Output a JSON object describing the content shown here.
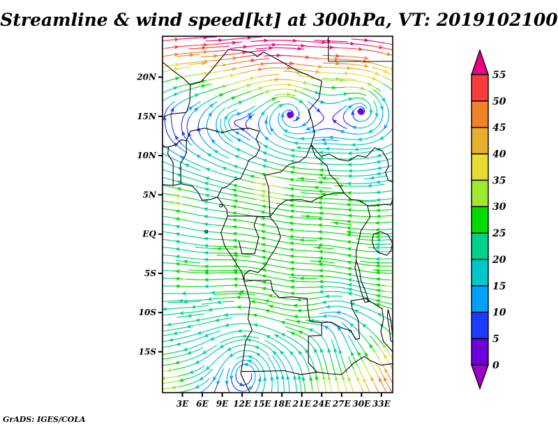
{
  "title": "Streamline & wind speed[kt] at 300hPa, VT: 2019102100",
  "credit": "GrADS: IGES/COLA",
  "chart_data": {
    "type": "streamline-map",
    "variable": "wind speed [kt]",
    "pressure_level": "300hPa",
    "valid_time": "2019102100",
    "geo": {
      "lon_min": 0,
      "lon_max": 34.7,
      "lat_min": -20.2,
      "lat_max": 25.2
    },
    "x_axis": {
      "ticks": [
        {
          "lon": 3,
          "label": "3E"
        },
        {
          "lon": 6,
          "label": "6E"
        },
        {
          "lon": 9,
          "label": "9E"
        },
        {
          "lon": 12,
          "label": "12E"
        },
        {
          "lon": 15,
          "label": "15E"
        },
        {
          "lon": 18,
          "label": "18E"
        },
        {
          "lon": 21,
          "label": "21E"
        },
        {
          "lon": 24,
          "label": "24E"
        },
        {
          "lon": 27,
          "label": "27E"
        },
        {
          "lon": 30,
          "label": "30E"
        },
        {
          "lon": 33,
          "label": "33E"
        }
      ]
    },
    "y_axis": {
      "ticks": [
        {
          "lat": 20,
          "label": "20N"
        },
        {
          "lat": 15,
          "label": "15N"
        },
        {
          "lat": 10,
          "label": "10N"
        },
        {
          "lat": 5,
          "label": "5N"
        },
        {
          "lat": 0,
          "label": "EQ"
        },
        {
          "lat": -5,
          "label": "5S"
        },
        {
          "lat": -10,
          "label": "10S"
        },
        {
          "lat": -15,
          "label": "15S"
        }
      ]
    },
    "colorbar": {
      "unit": "kt",
      "levels": [
        0,
        5,
        10,
        15,
        20,
        25,
        30,
        35,
        40,
        45,
        50,
        55
      ],
      "colors": [
        "#A000C8",
        "#6E00DC",
        "#1E3CFF",
        "#00A0FF",
        "#00C8C8",
        "#00D28C",
        "#00DC00",
        "#A0E632",
        "#E6DC32",
        "#E6AF2D",
        "#F08228",
        "#FA3C3C",
        "#F00082"
      ]
    },
    "flow": {
      "jets": [
        {
          "type": "westerly",
          "lat0": 27.5,
          "hw": 9.0,
          "peak": 57,
          "peak_bump": {
            "lon0": 17,
            "hw": 6,
            "amp": 5
          }
        },
        {
          "type": "easterly",
          "lat0": -0.5,
          "hw": 12.5,
          "power": 4,
          "amp": -17
        }
      ],
      "waves": [
        {
          "amp": 2.5,
          "k": 0.45,
          "phase": 2.0,
          "lat0": 21,
          "hw": 6
        },
        {
          "amp": 1.8,
          "k": 0.5,
          "phase": 0.0,
          "lat0": -3,
          "hw": 8
        }
      ],
      "bumps": [
        {
          "lon": 2,
          "lat": 4.5,
          "rlon": 2.2,
          "rlat": 2.2,
          "du": -9,
          "dv": 0
        },
        {
          "lon": 15.5,
          "lat": 6,
          "rlon": 2.4,
          "rlat": 2.0,
          "du": -9,
          "dv": 0
        },
        {
          "lon": 3,
          "lat": -5.5,
          "rlon": 2.0,
          "rlat": 1.6,
          "du": -7,
          "dv": 0
        },
        {
          "lon": 31,
          "lat": 7,
          "rlon": 3.0,
          "rlat": 2.2,
          "du": 8,
          "dv": 0
        },
        {
          "lon": 1,
          "lat": 15.2,
          "rlon": 2.0,
          "rlat": 1.5,
          "du": -6,
          "dv": 0
        },
        {
          "lon": 34.5,
          "lat": -7,
          "rlon": 2.5,
          "rlat": 2.5,
          "du": -8,
          "dv": 0
        },
        {
          "lon": 24.5,
          "lat": -21,
          "rlon": 5.0,
          "rlat": 4.0,
          "du": 0,
          "dv": 24
        },
        {
          "lon": 35.5,
          "lat": -20.5,
          "rlon": 8.0,
          "rlat": 8.0,
          "du": -24,
          "dv": 41
        },
        {
          "lon": 0,
          "lat": -20,
          "rlon": 6.5,
          "rlat": 6.5,
          "du": -34,
          "dv": 0
        }
      ],
      "vortices": [
        {
          "lon": 10.4,
          "lat": 14.4,
          "r0": 1.2,
          "speed": 9,
          "dir": -1,
          "inflow": 0
        },
        {
          "lon": 19.0,
          "lat": 15.7,
          "r0": 2.2,
          "speed": 13,
          "dir": -1,
          "inflow": 0.28
        },
        {
          "lon": 30.2,
          "lat": 16.1,
          "r0": 1.8,
          "speed": 13,
          "dir": -1,
          "inflow": 0.22
        },
        {
          "lon": 12.6,
          "lat": -17.5,
          "r0": 2.8,
          "speed": 14,
          "dir": 1,
          "inflow": 0.1
        }
      ],
      "saddles": [
        {
          "lon": 23.8,
          "lat": -12.2,
          "strength": 5,
          "taper": 4
        }
      ]
    },
    "map_borders": [
      [
        [
          0,
          6.3
        ],
        [
          1.6,
          6.2
        ],
        [
          2.8,
          6.4
        ],
        [
          4.5,
          6.1
        ],
        [
          5.3,
          5.4
        ],
        [
          6.0,
          4.3
        ],
        [
          7.2,
          4.4
        ],
        [
          8.3,
          4.7
        ],
        [
          8.9,
          4.0
        ],
        [
          9.7,
          3.1
        ],
        [
          9.8,
          2.3
        ],
        [
          9.3,
          1.2
        ],
        [
          8.8,
          0.2
        ],
        [
          9.4,
          -1.6
        ],
        [
          10.5,
          -2.9
        ],
        [
          11.2,
          -3.9
        ],
        [
          11.9,
          -4.8
        ],
        [
          12.3,
          -6.0
        ],
        [
          12.8,
          -7.3
        ],
        [
          13.2,
          -8.7
        ],
        [
          12.9,
          -10.8
        ],
        [
          13.5,
          -12.2
        ],
        [
          12.5,
          -13.7
        ],
        [
          12.2,
          -15.6
        ],
        [
          11.8,
          -17.8
        ],
        [
          12.4,
          -18.9
        ],
        [
          13.2,
          -20.2
        ]
      ],
      [
        [
          0,
          21.9
        ],
        [
          1.6,
          20.8
        ],
        [
          3.2,
          19.8
        ],
        [
          4.2,
          19.0
        ],
        [
          4.1,
          16.8
        ],
        [
          3.6,
          15.5
        ],
        [
          1.3,
          15.3
        ],
        [
          0,
          14.9
        ]
      ],
      [
        [
          4.2,
          19.0
        ],
        [
          5.8,
          19.4
        ],
        [
          7.4,
          20.9
        ],
        [
          9.9,
          23.5
        ],
        [
          11.6,
          23.4
        ],
        [
          13.5,
          23.1
        ],
        [
          14.3,
          22.6
        ],
        [
          15.2,
          23.2
        ],
        [
          16.8,
          22.5
        ],
        [
          20.1,
          20.9
        ],
        [
          24.0,
          19.5
        ]
      ],
      [
        [
          25.0,
          25.2
        ],
        [
          25.0,
          22.0
        ],
        [
          34.7,
          22.0
        ]
      ],
      [
        [
          24.0,
          19.5
        ],
        [
          23.6,
          17.3
        ],
        [
          22.0,
          15.7
        ],
        [
          22.6,
          14.2
        ],
        [
          22.9,
          12.7
        ],
        [
          22.4,
          11.4
        ],
        [
          23.0,
          10.0
        ],
        [
          24.8,
          8.7
        ],
        [
          25.2,
          7.6
        ],
        [
          26.3,
          6.7
        ],
        [
          27.4,
          5.2
        ]
      ],
      [
        [
          3.6,
          11.9
        ],
        [
          4.2,
          13.1
        ],
        [
          6.4,
          13.5
        ],
        [
          9.0,
          12.9
        ],
        [
          10.6,
          13.3
        ],
        [
          13.0,
          13.5
        ],
        [
          14.6,
          13.1
        ]
      ],
      [
        [
          14.6,
          13.1
        ],
        [
          14.1,
          12.1
        ],
        [
          14.7,
          11.0
        ],
        [
          14.1,
          10.0
        ],
        [
          13.0,
          9.4
        ],
        [
          12.7,
          8.7
        ],
        [
          11.8,
          7.1
        ],
        [
          10.8,
          6.9
        ],
        [
          9.8,
          6.1
        ],
        [
          8.9,
          5.8
        ],
        [
          8.3,
          4.7
        ]
      ],
      [
        [
          2.8,
          6.4
        ],
        [
          2.7,
          9.0
        ],
        [
          3.3,
          9.8
        ],
        [
          3.6,
          10.4
        ],
        [
          3.6,
          11.9
        ]
      ],
      [
        [
          1.6,
          6.2
        ],
        [
          1.6,
          9.1
        ],
        [
          0.8,
          10.2
        ],
        [
          0.9,
          11.1
        ],
        [
          2.0,
          11.4
        ],
        [
          2.8,
          12.0
        ],
        [
          3.6,
          11.9
        ]
      ],
      [
        [
          0,
          11.1
        ],
        [
          0.9,
          11.1
        ]
      ],
      [
        [
          15.4,
          7.5
        ],
        [
          16.6,
          7.7
        ],
        [
          17.8,
          7.9
        ],
        [
          19.1,
          8.9
        ],
        [
          20.6,
          9.2
        ],
        [
          21.7,
          9.9
        ],
        [
          22.4,
          11.4
        ]
      ],
      [
        [
          16.2,
          2.2
        ],
        [
          16.1,
          4.2
        ],
        [
          16.0,
          5.9
        ],
        [
          15.4,
          7.5
        ]
      ],
      [
        [
          9.8,
          2.3
        ],
        [
          11.3,
          2.3
        ],
        [
          13.2,
          2.3
        ],
        [
          16.2,
          2.2
        ]
      ],
      [
        [
          11.5,
          -0.9
        ],
        [
          12.0,
          -2.5
        ],
        [
          13.9,
          -2.5
        ],
        [
          14.5,
          -0.4
        ],
        [
          13.8,
          1.1
        ],
        [
          14.3,
          2.3
        ]
      ],
      [
        [
          16.2,
          2.2
        ],
        [
          17.3,
          1.0
        ],
        [
          17.8,
          -0.4
        ],
        [
          17.0,
          -1.9
        ],
        [
          16.2,
          -2.9
        ],
        [
          15.5,
          -4.0
        ],
        [
          14.4,
          -4.9
        ],
        [
          13.1,
          -4.6
        ],
        [
          12.3,
          -5.2
        ],
        [
          12.3,
          -6.0
        ]
      ],
      [
        [
          16.2,
          2.2
        ],
        [
          17.5,
          3.6
        ],
        [
          18.6,
          4.3
        ],
        [
          20.8,
          4.4
        ],
        [
          22.4,
          4.1
        ],
        [
          23.5,
          4.6
        ],
        [
          24.7,
          5.0
        ],
        [
          25.8,
          5.2
        ],
        [
          27.4,
          5.2
        ]
      ],
      [
        [
          27.4,
          5.2
        ],
        [
          28.4,
          4.4
        ],
        [
          29.7,
          4.3
        ],
        [
          30.9,
          3.6
        ],
        [
          31.3,
          2.2
        ],
        [
          30.5,
          1.2
        ],
        [
          29.9,
          0.4
        ],
        [
          29.6,
          -0.8
        ],
        [
          29.2,
          -2.2
        ],
        [
          29.2,
          -3.4
        ]
      ],
      [
        [
          22.4,
          11.4
        ],
        [
          23.9,
          9.9
        ],
        [
          25.1,
          10.2
        ],
        [
          26.6,
          9.5
        ],
        [
          28.0,
          9.3
        ],
        [
          29.4,
          10.0
        ],
        [
          30.7,
          9.8
        ],
        [
          32.0,
          11.0
        ],
        [
          33.1,
          10.6
        ],
        [
          33.9,
          9.5
        ],
        [
          34.1,
          8.6
        ],
        [
          33.6,
          7.9
        ],
        [
          34.0,
          6.9
        ],
        [
          34.7,
          6.6
        ]
      ],
      [
        [
          30.9,
          3.6
        ],
        [
          32.0,
          3.6
        ],
        [
          33.5,
          3.8
        ],
        [
          34.4,
          3.7
        ],
        [
          34.7,
          4.4
        ]
      ],
      [
        [
          31.8,
          0.0
        ],
        [
          32.9,
          0.3
        ],
        [
          34.0,
          -0.1
        ],
        [
          34.7,
          -1.2
        ],
        [
          34.4,
          -2.2
        ],
        [
          33.8,
          -2.7
        ],
        [
          32.7,
          -2.4
        ],
        [
          31.9,
          -1.8
        ],
        [
          31.6,
          -0.9
        ],
        [
          31.8,
          0.0
        ]
      ],
      [
        [
          29.2,
          -3.4
        ],
        [
          29.7,
          -4.6
        ],
        [
          29.9,
          -5.9
        ],
        [
          30.5,
          -7.1
        ],
        [
          31.1,
          -8.6
        ],
        [
          30.5,
          -8.7
        ],
        [
          29.9,
          -7.2
        ],
        [
          29.4,
          -5.6
        ],
        [
          29.0,
          -4.3
        ],
        [
          29.2,
          -3.4
        ]
      ],
      [
        [
          12.3,
          -6.0
        ],
        [
          14.0,
          -5.9
        ],
        [
          16.3,
          -5.9
        ],
        [
          16.6,
          -7.2
        ],
        [
          17.6,
          -8.1
        ],
        [
          19.4,
          -8.0
        ],
        [
          21.8,
          -8.2
        ],
        [
          21.9,
          -9.5
        ],
        [
          22.2,
          -11.1
        ],
        [
          24.0,
          -11.3
        ],
        [
          24.0,
          -12.9
        ]
      ],
      [
        [
          24.0,
          -11.3
        ],
        [
          25.4,
          -11.2
        ],
        [
          26.9,
          -11.9
        ],
        [
          28.4,
          -12.3
        ],
        [
          29.1,
          -13.4
        ],
        [
          29.7,
          -13.3
        ],
        [
          29.6,
          -12.2
        ],
        [
          29.5,
          -10.9
        ],
        [
          28.6,
          -9.5
        ],
        [
          28.4,
          -8.5
        ],
        [
          30.7,
          -8.2
        ],
        [
          31.1,
          -8.6
        ]
      ],
      [
        [
          11.8,
          -17.5
        ],
        [
          13.9,
          -17.5
        ],
        [
          18.4,
          -17.4
        ],
        [
          20.9,
          -17.9
        ],
        [
          23.3,
          -17.6
        ],
        [
          25.3,
          -17.8
        ],
        [
          27.0,
          -17.9
        ],
        [
          28.9,
          -16.4
        ],
        [
          30.4,
          -15.6
        ],
        [
          31.3,
          -16.1
        ],
        [
          32.9,
          -16.7
        ],
        [
          34.7,
          -16.5
        ]
      ],
      [
        [
          24.0,
          -12.9
        ],
        [
          22.0,
          -13.0
        ],
        [
          22.0,
          -16.4
        ],
        [
          23.3,
          -17.6
        ]
      ],
      [
        [
          30.7,
          -8.2
        ],
        [
          31.9,
          -8.9
        ],
        [
          33.1,
          -9.5
        ],
        [
          33.3,
          -10.9
        ],
        [
          32.9,
          -12.4
        ],
        [
          33.3,
          -13.7
        ],
        [
          34.3,
          -14.6
        ],
        [
          34.7,
          -15.0
        ]
      ],
      [
        [
          34.0,
          -9.6
        ],
        [
          34.4,
          -10.9
        ],
        [
          34.6,
          -12.2
        ],
        [
          34.9,
          -13.8
        ],
        [
          34.4,
          -13.6
        ],
        [
          34.2,
          -12.0
        ],
        [
          33.9,
          -10.5
        ],
        [
          34.0,
          -9.6
        ]
      ]
    ],
    "islands": [
      {
        "lon": 8.8,
        "lat": 3.6
      },
      {
        "lon": 6.6,
        "lat": 0.3
      }
    ]
  }
}
